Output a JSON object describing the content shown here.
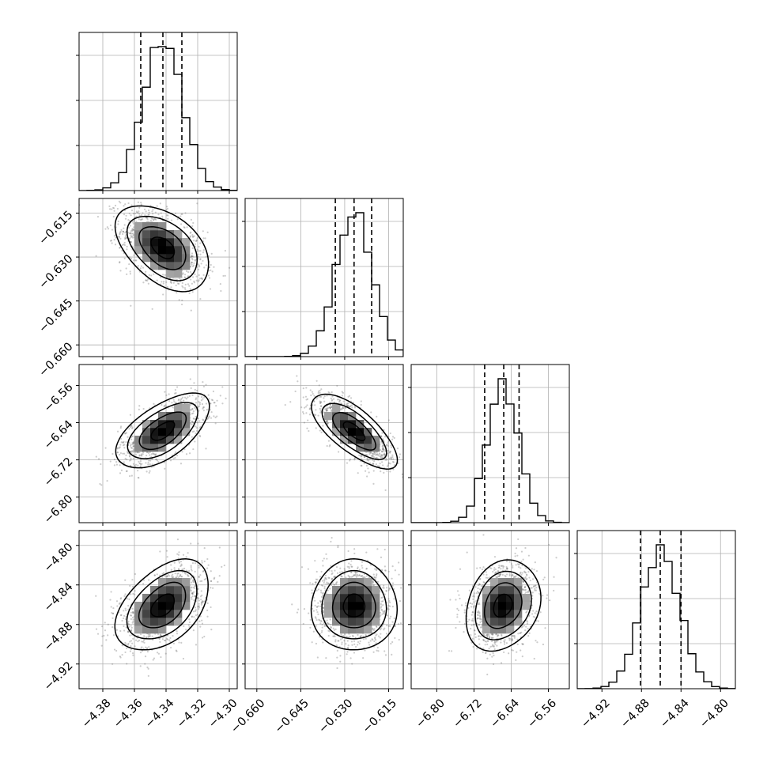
{
  "chart_data": {
    "type": "corner",
    "title": "",
    "colors": {
      "line": "#000000",
      "grid": "#b0b0b0",
      "scatter": "#6e6e6e"
    },
    "grid": true,
    "parameters": [
      {
        "index": 0,
        "range": [
          -4.395,
          -4.295
        ],
        "ticks": [
          -4.38,
          -4.36,
          -4.34,
          -4.32,
          -4.3
        ],
        "tick_labels": [
          "−4.38",
          "−4.36",
          "−4.34",
          "−4.32",
          "−4.30"
        ],
        "quantiles": [
          -4.356,
          -4.342,
          -4.33
        ],
        "mean": -4.342,
        "sd": 0.0125,
        "hist_bins": 20
      },
      {
        "index": 1,
        "range": [
          -0.664,
          -0.61
        ],
        "ticks": [
          -0.66,
          -0.645,
          -0.63,
          -0.615
        ],
        "tick_labels": [
          "−0.660",
          "−0.645",
          "−0.630",
          "−0.615"
        ],
        "quantiles": [
          -0.6332,
          -0.6268,
          -0.6208
        ],
        "mean": -0.6268,
        "sd": 0.0062,
        "hist_bins": 20
      },
      {
        "index": 2,
        "range": [
          -6.855,
          -6.515
        ],
        "ticks": [
          -6.8,
          -6.72,
          -6.64,
          -6.56
        ],
        "tick_labels": [
          "−6.80",
          "−6.72",
          "−6.64",
          "−6.56"
        ],
        "quantiles": [
          -6.697,
          -6.656,
          -6.623
        ],
        "mean": -6.658,
        "sd": 0.034,
        "hist_bins": 20
      },
      {
        "index": 3,
        "range": [
          -4.945,
          -4.785
        ],
        "ticks": [
          -4.92,
          -4.88,
          -4.84,
          -4.8
        ],
        "tick_labels": [
          "−4.92",
          "−4.88",
          "−4.84",
          "−4.80"
        ],
        "quantiles": [
          -4.881,
          -4.861,
          -4.84
        ],
        "mean": -4.861,
        "sd": 0.0195,
        "hist_bins": 20
      }
    ],
    "correlations": [
      {
        "pair": [
          1,
          0
        ],
        "rho": -0.45
      },
      {
        "pair": [
          2,
          0
        ],
        "rho": 0.6
      },
      {
        "pair": [
          2,
          1
        ],
        "rho": -0.72
      },
      {
        "pair": [
          3,
          0
        ],
        "rho": 0.45
      },
      {
        "pair": [
          3,
          1
        ],
        "rho": 0.0
      },
      {
        "pair": [
          3,
          2
        ],
        "rho": 0.22
      }
    ],
    "contour_levels_sigma": [
      0.5,
      1.0,
      1.5,
      2.0
    ]
  }
}
